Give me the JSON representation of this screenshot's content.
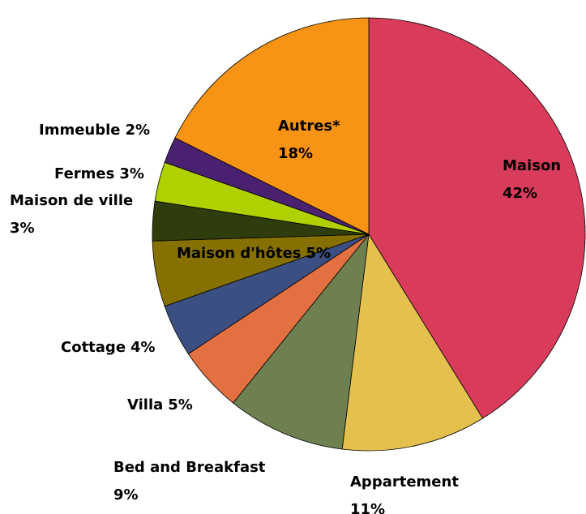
{
  "chart_data": {
    "type": "pie",
    "categories": [
      "Maison",
      "Appartement",
      "Bed and Breakfast",
      "Villa",
      "Cottage",
      "Maison d'hôtes",
      "Maison de ville",
      "Fermes",
      "Immeuble",
      "Autres*"
    ],
    "values": [
      42,
      11,
      9,
      5,
      4,
      5,
      3,
      3,
      2,
      18
    ],
    "value_labels": [
      "42%",
      "11%",
      "9%",
      "5%",
      "4%",
      "5%",
      "3%",
      "3%",
      "2%",
      "18%"
    ],
    "colors": [
      "#d83c5a",
      "#e4c04e",
      "#6e8050",
      "#e37040",
      "#3c4f82",
      "#857000",
      "#2f3d0d",
      "#b0d000",
      "#4a2070",
      "#f79315"
    ]
  }
}
